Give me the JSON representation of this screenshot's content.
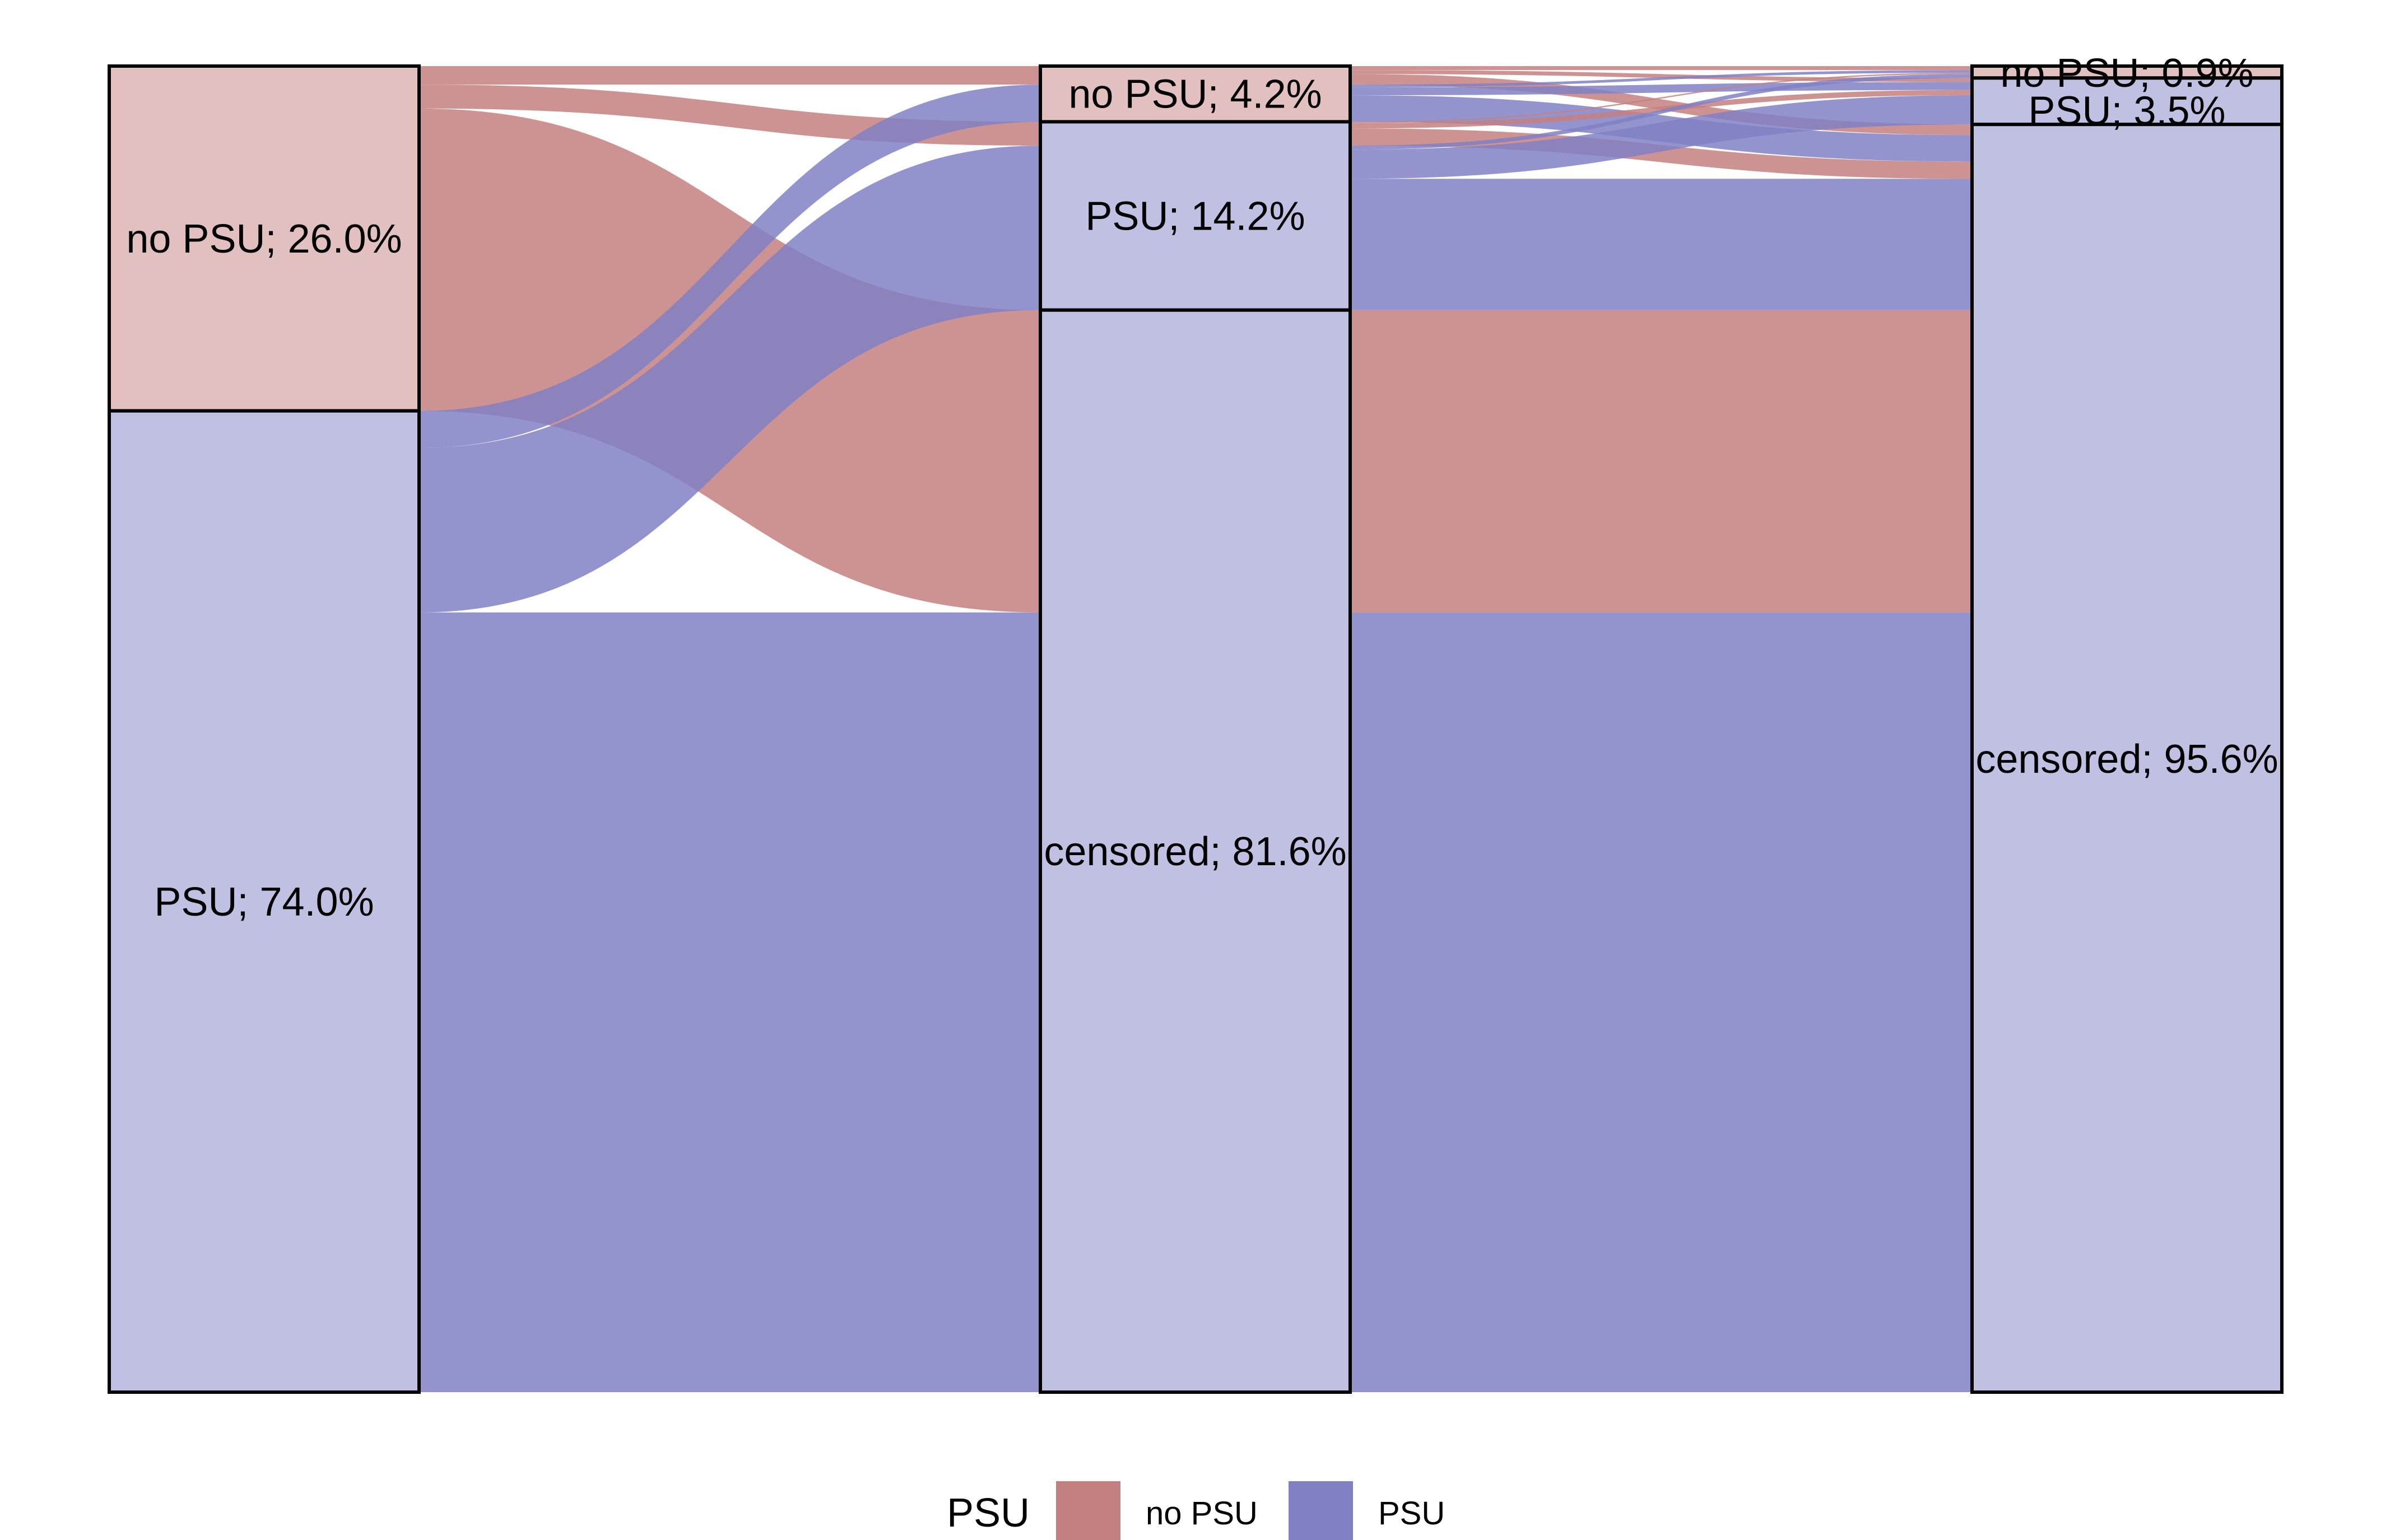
{
  "chart_data": {
    "type": "alluvial",
    "stages": [
      {
        "nodes": [
          {
            "id": "s0-nopsu",
            "label": "no PSU; 26.0%",
            "category": "no PSU",
            "value": 26.0
          },
          {
            "id": "s0-psu",
            "label": "PSU; 74.0%",
            "category": "PSU",
            "value": 74.0
          }
        ]
      },
      {
        "nodes": [
          {
            "id": "s1-nopsu",
            "label": "no PSU; 4.2%",
            "category": "no PSU",
            "value": 4.2
          },
          {
            "id": "s1-psu",
            "label": "PSU; 14.2%",
            "category": "PSU",
            "value": 14.2
          },
          {
            "id": "s1-censored",
            "label": "censored; 81.6%",
            "category": "censored",
            "value": 81.6
          }
        ]
      },
      {
        "nodes": [
          {
            "id": "s2-nopsu",
            "label": "no PSU; 0.9%",
            "category": "no PSU",
            "value": 0.9
          },
          {
            "id": "s2-psu",
            "label": "PSU; 3.5%",
            "category": "PSU",
            "value": 3.5
          },
          {
            "id": "s2-censored",
            "label": "censored; 95.6%",
            "category": "censored",
            "value": 95.6
          }
        ]
      }
    ],
    "flows": [
      {
        "start": "no PSU",
        "from": "s0-nopsu",
        "to": "s1-nopsu",
        "value": 1.4
      },
      {
        "start": "no PSU",
        "from": "s0-nopsu",
        "to": "s1-psu",
        "value": 1.8
      },
      {
        "start": "no PSU",
        "from": "s0-nopsu",
        "to": "s1-censored",
        "value": 22.8
      },
      {
        "start": "PSU",
        "from": "s0-psu",
        "to": "s1-nopsu",
        "value": 2.8
      },
      {
        "start": "PSU",
        "from": "s0-psu",
        "to": "s1-psu",
        "value": 12.4
      },
      {
        "start": "PSU",
        "from": "s0-psu",
        "to": "s1-censored",
        "value": 58.8
      },
      {
        "start": "no PSU",
        "from": "s1-nopsu",
        "to": "s2-nopsu",
        "value": 0.3
      },
      {
        "start": "no PSU",
        "from": "s1-nopsu",
        "to": "s2-psu",
        "value": 0.3
      },
      {
        "start": "no PSU",
        "from": "s1-nopsu",
        "to": "s2-censored",
        "value": 0.8
      },
      {
        "start": "PSU",
        "from": "s1-nopsu",
        "to": "s2-nopsu",
        "value": 0.2
      },
      {
        "start": "PSU",
        "from": "s1-nopsu",
        "to": "s2-psu",
        "value": 0.6
      },
      {
        "start": "PSU",
        "from": "s1-nopsu",
        "to": "s2-censored",
        "value": 2.0
      },
      {
        "start": "no PSU",
        "from": "s1-psu",
        "to": "s2-nopsu",
        "value": 0.1
      },
      {
        "start": "no PSU",
        "from": "s1-psu",
        "to": "s2-psu",
        "value": 0.4
      },
      {
        "start": "no PSU",
        "from": "s1-psu",
        "to": "s2-censored",
        "value": 1.3
      },
      {
        "start": "PSU",
        "from": "s1-psu",
        "to": "s2-nopsu",
        "value": 0.3
      },
      {
        "start": "PSU",
        "from": "s1-psu",
        "to": "s2-psu",
        "value": 2.2
      },
      {
        "start": "PSU",
        "from": "s1-psu",
        "to": "s2-censored",
        "value": 9.9
      },
      {
        "start": "no PSU",
        "from": "s1-censored",
        "to": "s2-censored",
        "value": 22.8
      },
      {
        "start": "PSU",
        "from": "s1-censored",
        "to": "s2-censored",
        "value": 58.8
      }
    ],
    "legend": {
      "title": "PSU",
      "placement": "bottom",
      "entries": [
        {
          "label": "no PSU",
          "color": "#c48080"
        },
        {
          "label": "PSU",
          "color": "#8080c4"
        }
      ]
    },
    "colors": {
      "no PSU": "#c48080",
      "PSU": "#8080c4",
      "node_no PSU": "#e3c0c0",
      "node_PSU": "#c0c0e3",
      "node_censored": "#c0c0e3"
    }
  }
}
